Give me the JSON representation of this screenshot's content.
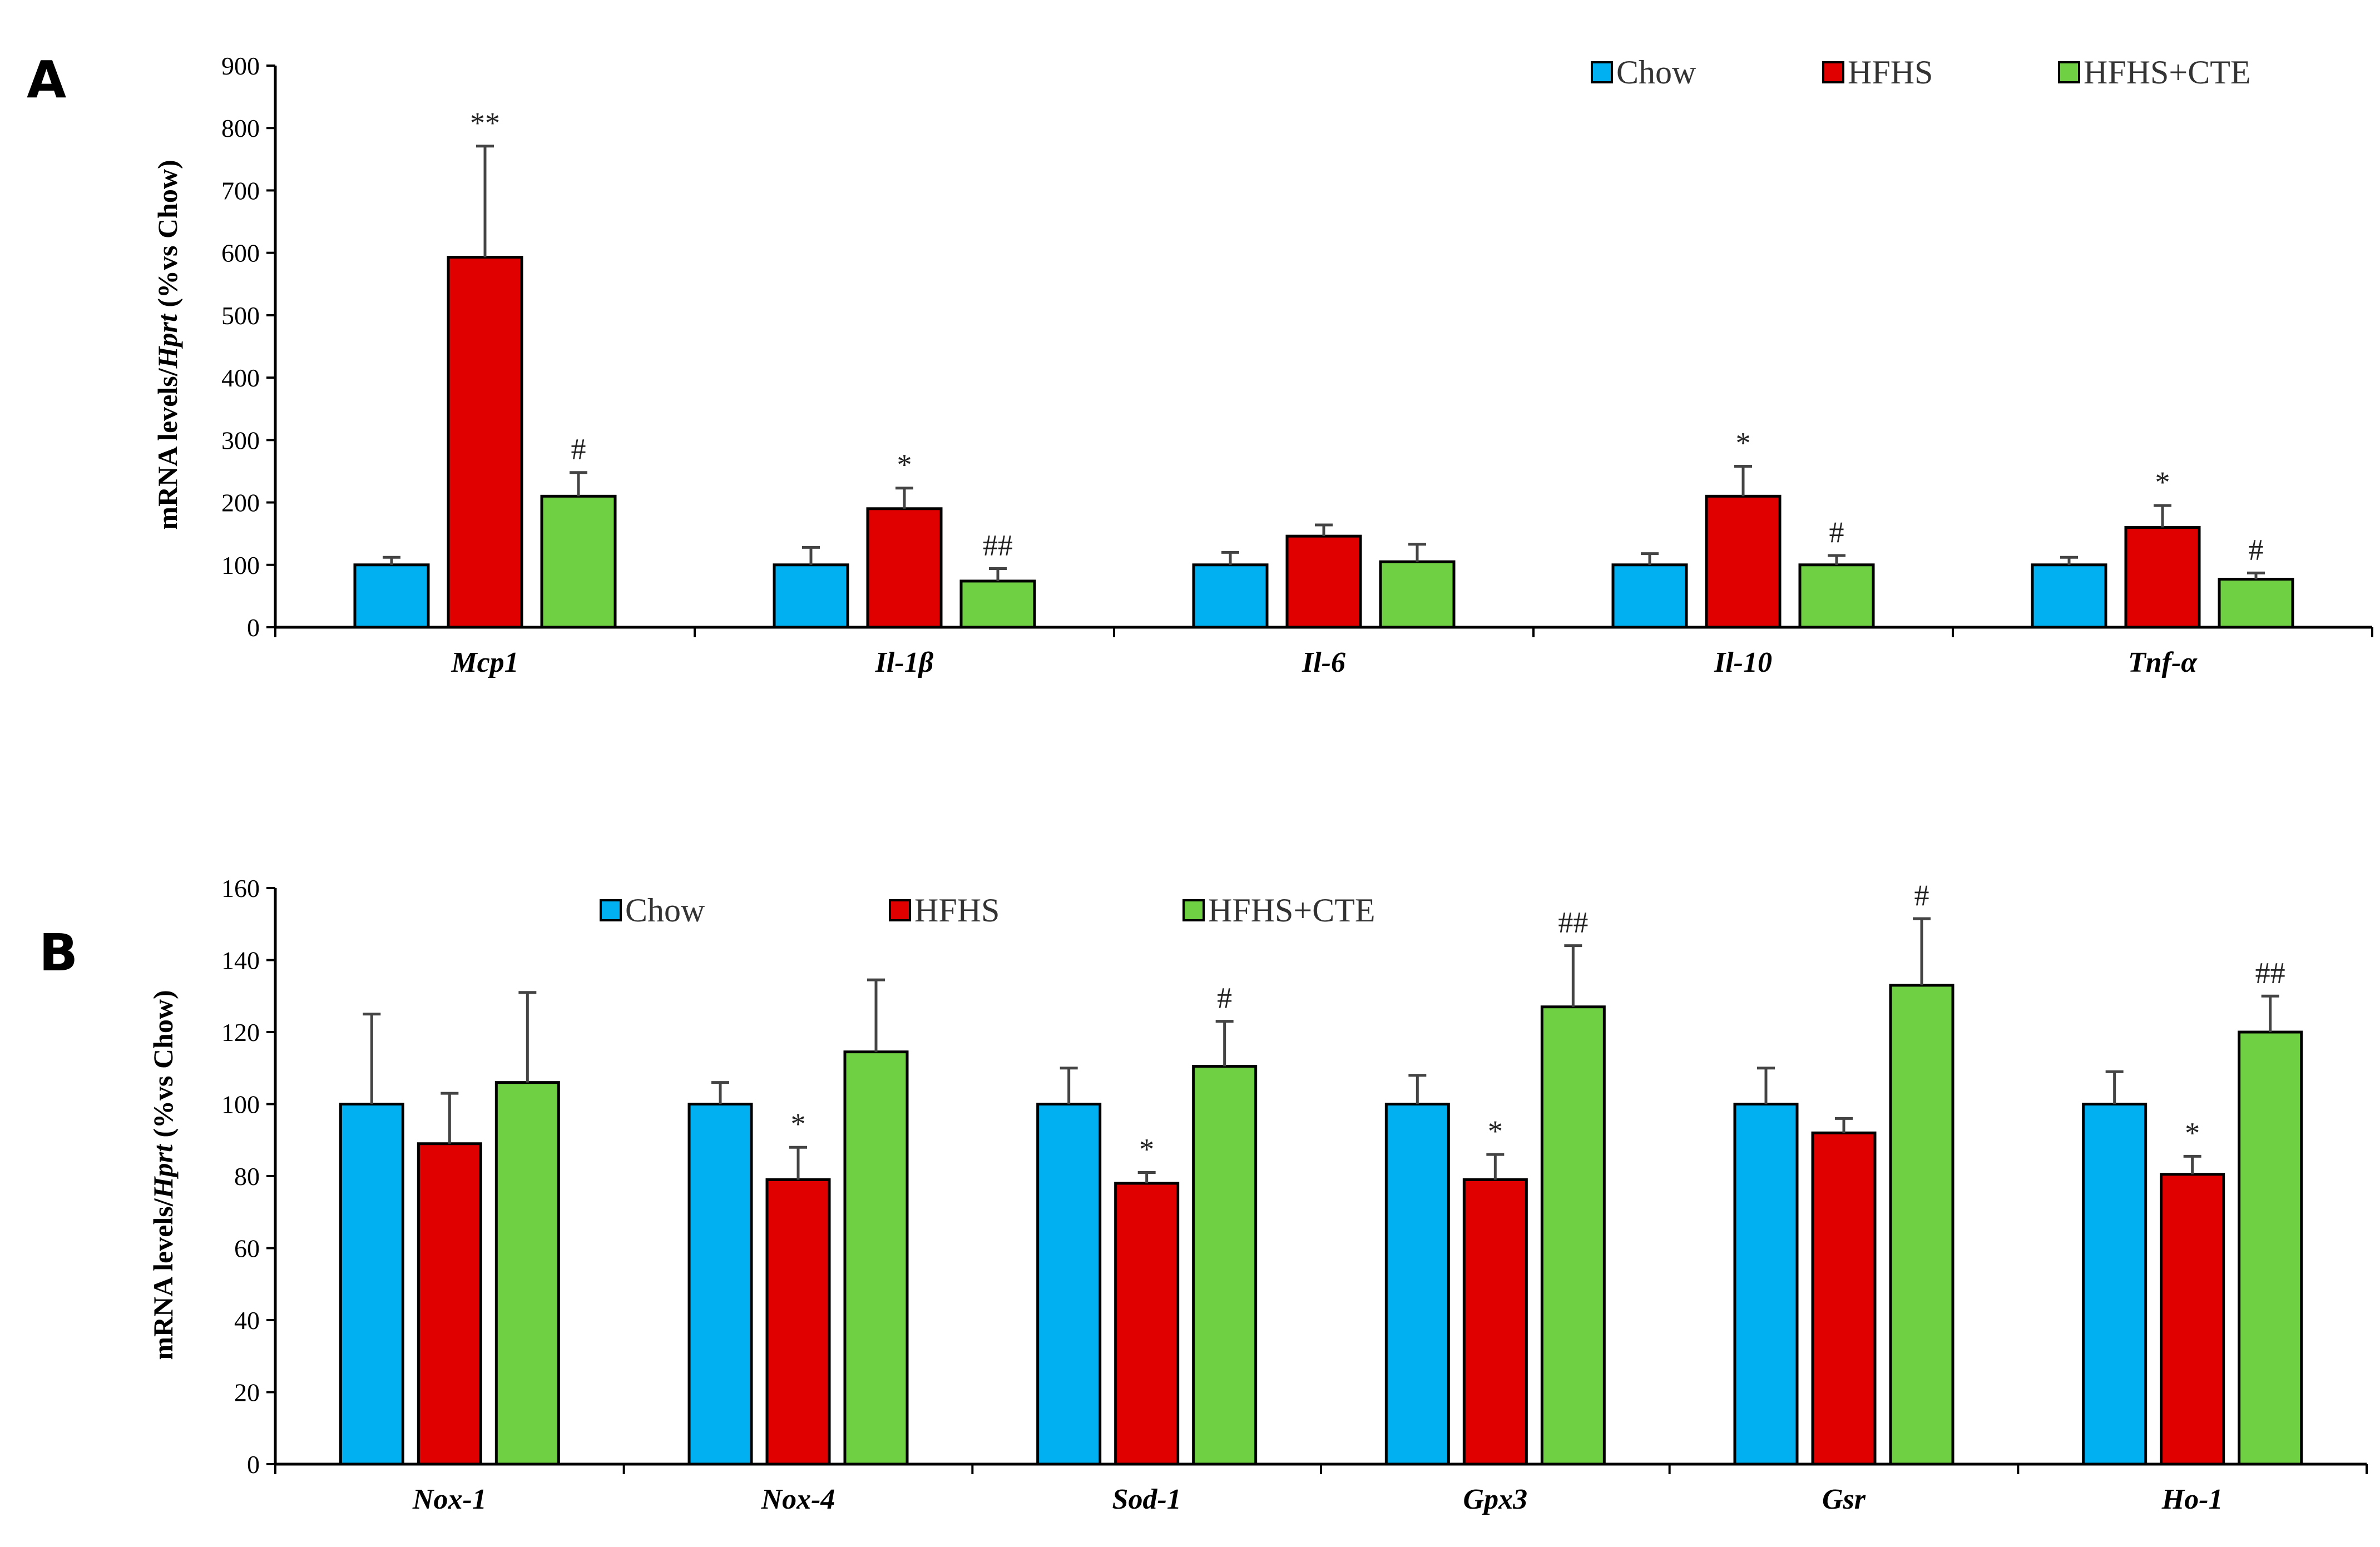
{
  "colors": {
    "Chow": "#00b0f0",
    "HFHS": "#e00000",
    "HFHS+CTE": "#70d044"
  },
  "chart_data": [
    {
      "type": "bar",
      "panel": "A",
      "ylabel": "mRNA levels/Hprt (%vs Chow)",
      "ylabel_parts": [
        "mRNA levels/",
        "Hprt",
        " (%vs Chow)"
      ],
      "ylim": [
        0,
        900
      ],
      "yticks": [
        0,
        100,
        200,
        300,
        400,
        500,
        600,
        700,
        800,
        900
      ],
      "legend_position": "top-right",
      "categories": [
        "Mcp1",
        "Il-1β",
        "Il-6",
        "Il-10",
        "Tnf-α"
      ],
      "series": [
        {
          "name": "Chow",
          "values": [
            100,
            100,
            100,
            100,
            100
          ],
          "errors": [
            12,
            28,
            20,
            18,
            12
          ],
          "annotations": [
            "",
            "",
            "",
            "",
            ""
          ]
        },
        {
          "name": "HFHS",
          "values": [
            593,
            190,
            146,
            210,
            160
          ],
          "errors": [
            178,
            33,
            18,
            48,
            35
          ],
          "annotations": [
            "**",
            "*",
            "",
            "*",
            "*"
          ]
        },
        {
          "name": "HFHS+CTE",
          "values": [
            210,
            74,
            105,
            100,
            77
          ],
          "errors": [
            38,
            20,
            28,
            15,
            10
          ],
          "annotations": [
            "#",
            "##",
            "",
            "#",
            "#"
          ]
        }
      ]
    },
    {
      "type": "bar",
      "panel": "B",
      "ylabel": "mRNA levels/Hprt (%vs Chow)",
      "ylabel_parts": [
        "mRNA levels/",
        "Hprt",
        " (%vs Chow)"
      ],
      "ylim": [
        0,
        160
      ],
      "yticks": [
        0,
        20,
        40,
        60,
        80,
        100,
        120,
        140,
        160
      ],
      "legend_position": "top-left",
      "categories": [
        "Nox-1",
        "Nox-4",
        "Sod-1",
        "Gpx3",
        "Gsr",
        "Ho-1"
      ],
      "series": [
        {
          "name": "Chow",
          "values": [
            100,
            100,
            100,
            100,
            100,
            100
          ],
          "errors": [
            25,
            6,
            10,
            8,
            10,
            9
          ],
          "annotations": [
            "",
            "",
            "",
            "",
            "",
            ""
          ]
        },
        {
          "name": "HFHS",
          "values": [
            89,
            79,
            78,
            79,
            92,
            80.5
          ],
          "errors": [
            14,
            9,
            3,
            7,
            4,
            5
          ],
          "annotations": [
            "",
            "*",
            "*",
            "*",
            "",
            "*"
          ]
        },
        {
          "name": "HFHS+CTE",
          "values": [
            106,
            114.5,
            110.5,
            127,
            133,
            120
          ],
          "errors": [
            25,
            20,
            12.5,
            17,
            18.5,
            10
          ],
          "annotations": [
            "",
            "",
            "#",
            "##",
            "#",
            "##"
          ]
        }
      ]
    }
  ]
}
